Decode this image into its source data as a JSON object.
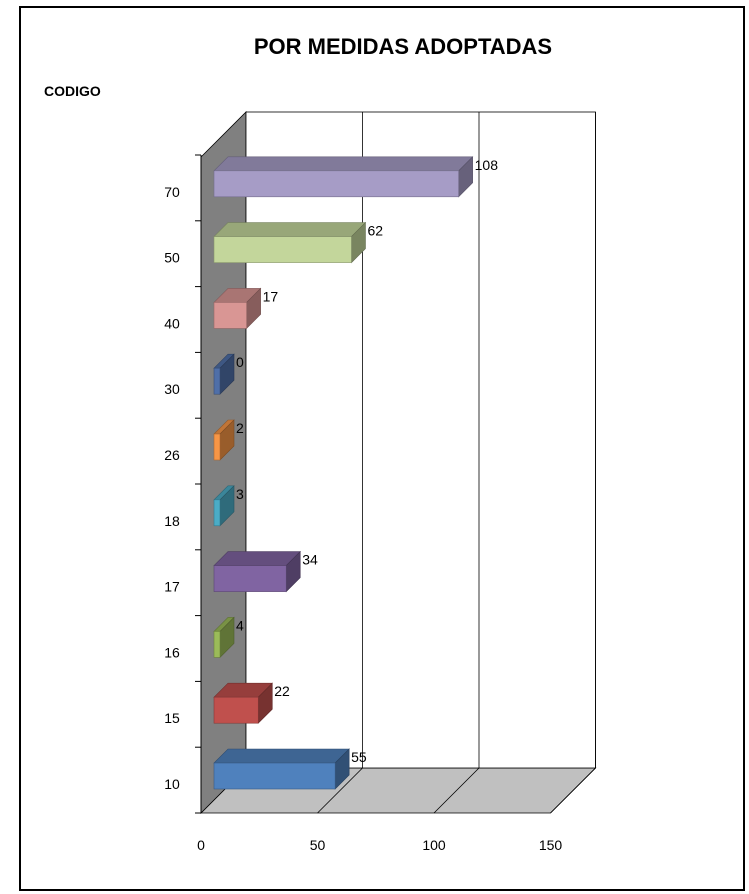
{
  "chart_data": {
    "type": "bar",
    "orientation": "horizontal",
    "three_d": true,
    "title": "POR MEDIDAS ADOPTADAS",
    "ylabel": "CODIGO",
    "xlabel": "",
    "categories": [
      "10",
      "15",
      "16",
      "17",
      "18",
      "26",
      "30",
      "40",
      "50",
      "70"
    ],
    "values": [
      55,
      22,
      4,
      34,
      3,
      2,
      0,
      17,
      62,
      108
    ],
    "bar_colors": [
      "#4f81bd",
      "#c0504d",
      "#9bbb59",
      "#8064a2",
      "#4bacc6",
      "#f79646",
      "#4f6fa8",
      "#d99694",
      "#c3d69b",
      "#a69cc6"
    ],
    "xlim": [
      0,
      150
    ],
    "x_ticks": [
      "0",
      "50",
      "100",
      "150"
    ],
    "grid": true,
    "legend": "none"
  }
}
